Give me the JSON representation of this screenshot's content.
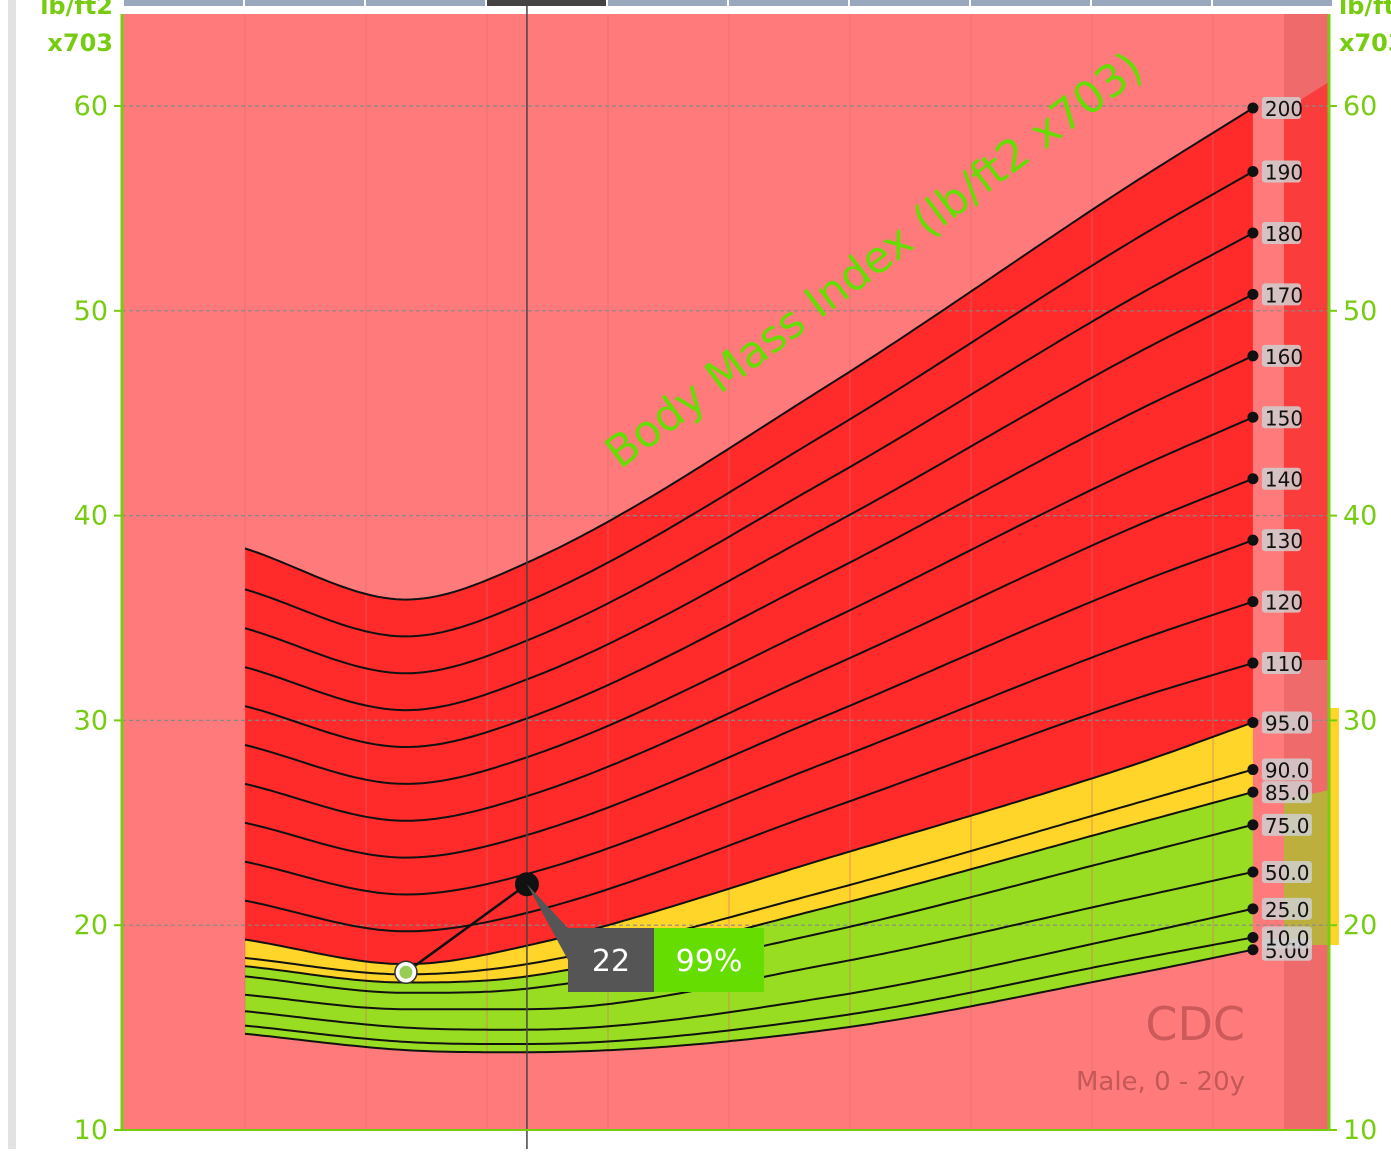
{
  "chart_data": {
    "type": "line",
    "title": "Body Mass Index (lb/ft2 x703)",
    "source_label": "CDC",
    "subtitle": "Male, 0 - 20y",
    "y_unit_line1": "lb/ft2",
    "y_unit_line2": "x703",
    "ylim": [
      10,
      60
    ],
    "y_ticks": [
      "10",
      "20",
      "30",
      "40",
      "50",
      "60"
    ],
    "grid": true,
    "x_domain": [
      0,
      10
    ],
    "x_vertical_gridlines": [
      1,
      2,
      3,
      4,
      5,
      6,
      7,
      8,
      9
    ],
    "cursor_x": 3.33,
    "colors": {
      "background": "#ff7b7b",
      "red_zone": "#ff2a2a",
      "yellow_zone": "#ffd52a",
      "green_zone": "#99dd22",
      "axis": "#77cc11",
      "right_band": "#ef6a6a",
      "tooltip_dark": "#555555",
      "tooltip_green": "#66dd00"
    },
    "series": [
      {
        "name": "5.00",
        "label": "5.00",
        "zone": "green",
        "x": [
          1,
          2.33,
          3.33,
          5.83,
          8.33,
          9.33
        ],
        "y": [
          14.7,
          13.9,
          13.8,
          14.9,
          17.6,
          18.8
        ]
      },
      {
        "name": "10.0",
        "label": "10.0",
        "zone": "green",
        "x": [
          1,
          2.33,
          3.33,
          5.83,
          8.33,
          9.33
        ],
        "y": [
          15.1,
          14.3,
          14.2,
          15.5,
          18.3,
          19.4
        ]
      },
      {
        "name": "25.0",
        "label": "25.0",
        "zone": "green",
        "x": [
          1,
          2.33,
          3.33,
          5.83,
          8.33,
          9.33
        ],
        "y": [
          15.8,
          15.0,
          14.9,
          16.5,
          19.5,
          20.8
        ]
      },
      {
        "name": "50.0",
        "label": "50.0",
        "zone": "green",
        "x": [
          1,
          2.33,
          3.33,
          5.83,
          8.33,
          9.33
        ],
        "y": [
          16.6,
          15.9,
          15.9,
          18.1,
          21.3,
          22.6
        ]
      },
      {
        "name": "75.0",
        "label": "75.0",
        "zone": "green",
        "x": [
          1,
          2.33,
          3.33,
          5.83,
          8.33,
          9.33
        ],
        "y": [
          17.5,
          16.7,
          16.9,
          19.7,
          23.4,
          24.9
        ]
      },
      {
        "name": "85.0",
        "label": "85.0",
        "zone": "green",
        "x": [
          1,
          2.33,
          3.33,
          5.83,
          8.33,
          9.33
        ],
        "y": [
          18.0,
          17.2,
          17.5,
          20.9,
          24.9,
          26.5
        ]
      },
      {
        "name": "90.0",
        "label": "90.0",
        "zone": "yellow",
        "x": [
          1,
          2.33,
          3.33,
          5.83,
          8.33,
          9.33
        ],
        "y": [
          18.4,
          17.6,
          18.1,
          21.7,
          25.9,
          27.6
        ]
      },
      {
        "name": "95.0",
        "label": "95.0",
        "zone": "yellow",
        "x": [
          1,
          2.33,
          3.33,
          5.83,
          8.33,
          9.33
        ],
        "y": [
          19.3,
          18.1,
          19.0,
          23.3,
          27.8,
          29.9
        ]
      },
      {
        "name": "110",
        "label": "110",
        "zone": "red",
        "x": [
          1,
          2.33,
          3.33,
          5.83,
          8.33,
          9.33
        ],
        "y": [
          21.2,
          19.7,
          20.6,
          25.7,
          31.0,
          32.8
        ]
      },
      {
        "name": "120",
        "label": "120",
        "zone": "red",
        "x": [
          1,
          2.33,
          3.33,
          5.83,
          8.33,
          9.33
        ],
        "y": [
          23.1,
          21.5,
          22.5,
          28.0,
          33.8,
          35.8
        ]
      },
      {
        "name": "130",
        "label": "130",
        "zone": "red",
        "x": [
          1,
          2.33,
          3.33,
          5.83,
          8.33,
          9.33
        ],
        "y": [
          25.0,
          23.3,
          24.4,
          30.3,
          36.6,
          38.8
        ]
      },
      {
        "name": "140",
        "label": "140",
        "zone": "red",
        "x": [
          1,
          2.33,
          3.33,
          5.83,
          8.33,
          9.33
        ],
        "y": [
          26.9,
          25.1,
          26.3,
          32.6,
          39.4,
          41.8
        ]
      },
      {
        "name": "150",
        "label": "150",
        "zone": "red",
        "x": [
          1,
          2.33,
          3.33,
          5.83,
          8.33,
          9.33
        ],
        "y": [
          28.8,
          26.9,
          28.2,
          34.9,
          42.2,
          44.8
        ]
      },
      {
        "name": "160",
        "label": "160",
        "zone": "red",
        "x": [
          1,
          2.33,
          3.33,
          5.83,
          8.33,
          9.33
        ],
        "y": [
          30.7,
          28.7,
          30.1,
          37.2,
          45.0,
          47.8
        ]
      },
      {
        "name": "170",
        "label": "170",
        "zone": "red",
        "x": [
          1,
          2.33,
          3.33,
          5.83,
          8.33,
          9.33
        ],
        "y": [
          32.6,
          30.5,
          32.0,
          39.5,
          47.8,
          50.8
        ]
      },
      {
        "name": "180",
        "label": "180",
        "zone": "red",
        "x": [
          1,
          2.33,
          3.33,
          5.83,
          8.33,
          9.33
        ],
        "y": [
          34.5,
          32.3,
          33.9,
          41.8,
          50.6,
          53.8
        ]
      },
      {
        "name": "190",
        "label": "190",
        "zone": "red",
        "x": [
          1,
          2.33,
          3.33,
          5.83,
          8.33,
          9.33
        ],
        "y": [
          36.4,
          34.1,
          35.8,
          44.1,
          53.4,
          56.8
        ]
      },
      {
        "name": "200",
        "label": "200",
        "zone": "red",
        "x": [
          1,
          2.33,
          3.33,
          5.83,
          8.33,
          9.33
        ],
        "y": [
          38.4,
          35.9,
          37.7,
          46.4,
          56.2,
          59.9
        ]
      }
    ],
    "patient_points": [
      {
        "x": 2.33,
        "y": 17.7,
        "style": "open"
      },
      {
        "x": 3.33,
        "y": 22.0,
        "style": "filled"
      }
    ],
    "tooltip": {
      "value": "22",
      "percentile": "99%",
      "x": 3.33,
      "y": 22.0
    }
  }
}
